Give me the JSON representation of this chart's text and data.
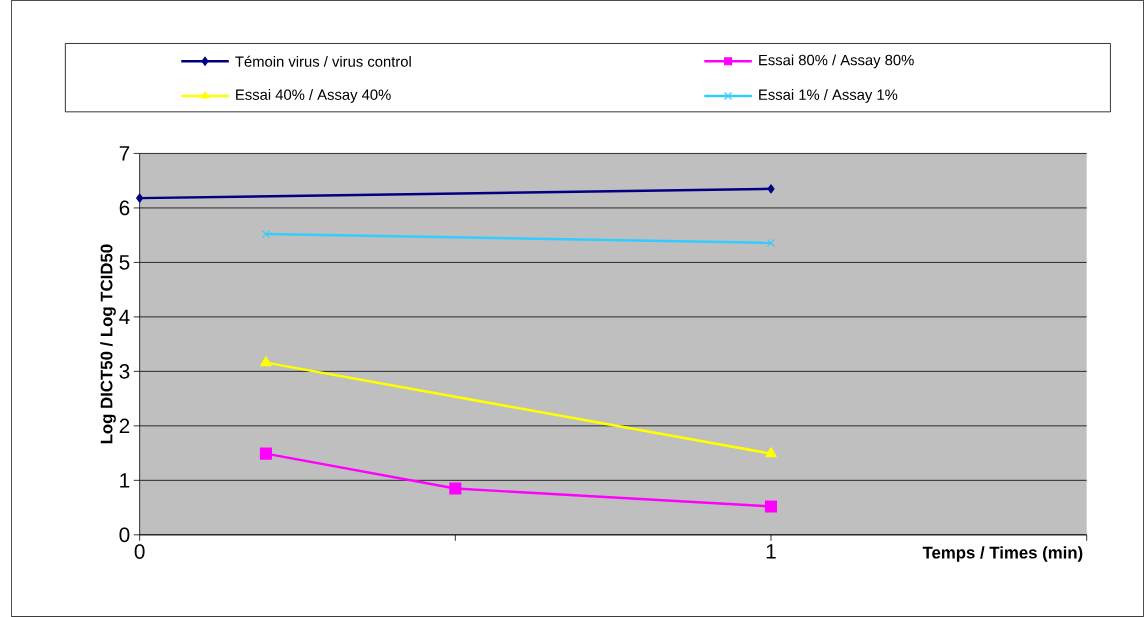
{
  "chart_data": {
    "type": "line",
    "xlabel": "Temps / Times (min)",
    "ylabel": "Log DICT50 / Log TCID50",
    "xlim": [
      0,
      1.5
    ],
    "xticks": [
      0,
      {
        "value": 0.5,
        "label": null
      },
      1,
      {
        "value": 1.5,
        "label": null
      }
    ],
    "ylim": [
      0,
      7
    ],
    "yticks": [
      0,
      1,
      2,
      3,
      4,
      5,
      6,
      7
    ],
    "grid": "y",
    "legend": "top",
    "series": [
      {
        "name": "Témoin virus / virus control",
        "color": "#000080",
        "marker": "diamond",
        "x": [
          0,
          1
        ],
        "values": [
          6.18,
          6.35
        ]
      },
      {
        "name": "Essai 80% / Assay 80%",
        "color": "#ff00ff",
        "marker": "square",
        "x": [
          0.2,
          0.5,
          1
        ],
        "values": [
          1.49,
          0.85,
          0.52
        ]
      },
      {
        "name": "Essai 40% / Assay 40%",
        "color": "#ffff00",
        "marker": "triangle",
        "x": [
          0.2,
          1
        ],
        "values": [
          3.16,
          1.49
        ]
      },
      {
        "name": "Essai 1% / Assay 1%",
        "color": "#33ccff",
        "marker": "cross",
        "x": [
          0.2,
          1
        ],
        "values": [
          5.52,
          5.36
        ]
      }
    ]
  }
}
